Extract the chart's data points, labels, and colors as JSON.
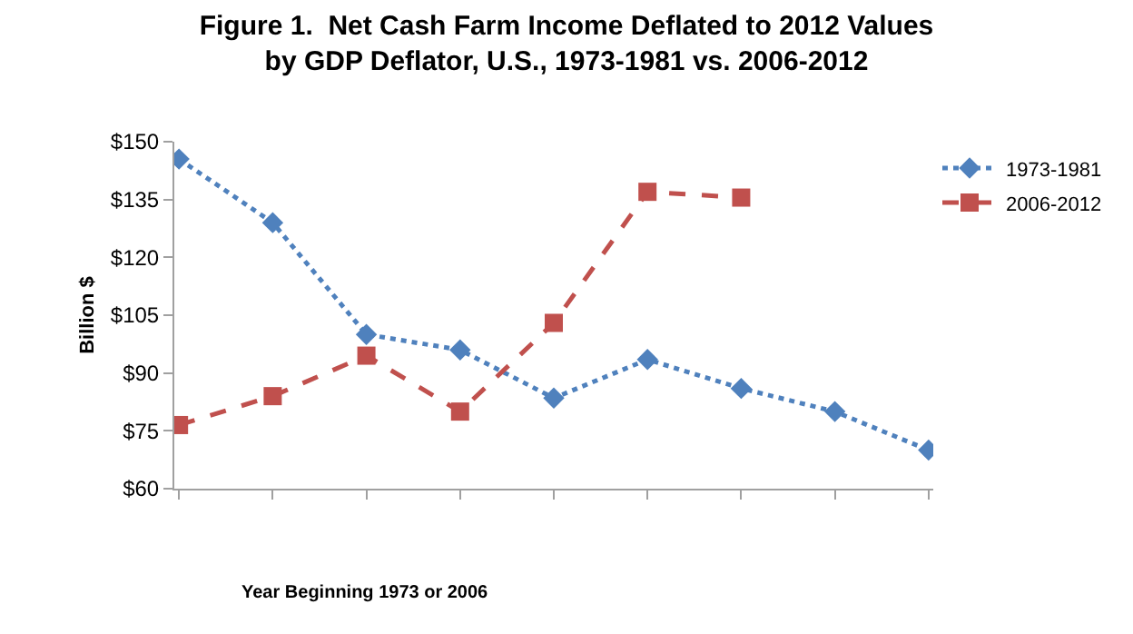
{
  "chart_data": {
    "type": "line",
    "title": "Figure 1.  Net Cash Farm Income Deflated to 2012 Values by GDP Deflator, U.S., 1973-1981 vs. 2006-2012",
    "xlabel": "Year Beginning 1973 or 2006",
    "ylabel": "Billion $",
    "categories": [
      null,
      null,
      null,
      null,
      null,
      null,
      null,
      null,
      null
    ],
    "series": [
      {
        "name": "1973-1981",
        "color": "#4f81bd",
        "marker": "diamond",
        "line_style": "dotted",
        "values": [
          145.5,
          129,
          100,
          96,
          83.5,
          93.5,
          86,
          80,
          70
        ]
      },
      {
        "name": "2006-2012",
        "color": "#c0504d",
        "marker": "square",
        "line_style": "dashed",
        "values": [
          76.5,
          84,
          94.5,
          80,
          103,
          137,
          135.5,
          null,
          null
        ]
      }
    ],
    "ylim": [
      60,
      150
    ],
    "yticks": [
      {
        "value": 60,
        "label": "$60"
      },
      {
        "value": 75,
        "label": "$75"
      },
      {
        "value": 90,
        "label": "$90"
      },
      {
        "value": 105,
        "label": "$105"
      },
      {
        "value": 120,
        "label": "$120"
      },
      {
        "value": 135,
        "label": "$135"
      },
      {
        "value": 150,
        "label": "$150"
      }
    ],
    "legend": "top right"
  }
}
